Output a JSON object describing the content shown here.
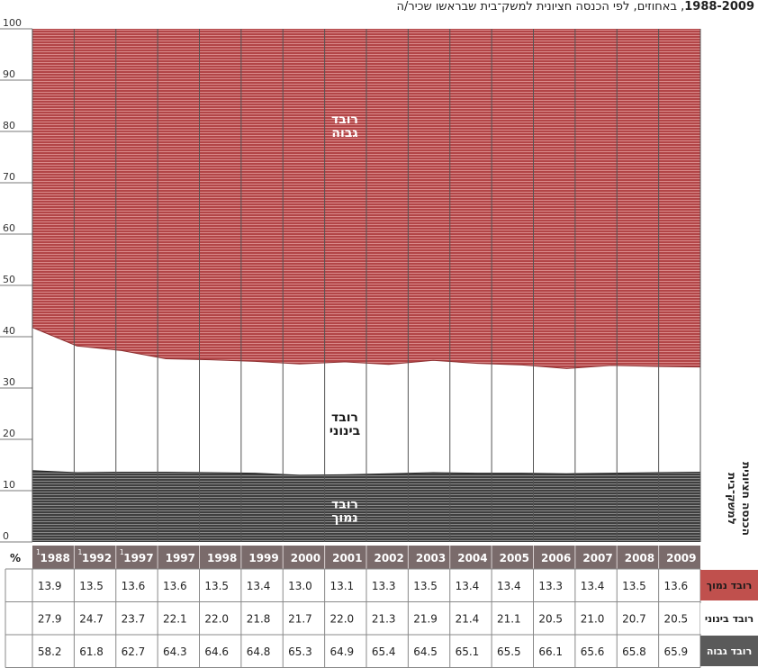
{
  "title": {
    "years": "1988-2009",
    "text": "באחוזים, לפי הכנסה חציונית למשק־בית שבראשו שכיר/ה"
  },
  "row_header_title": "הכנסה חציונית למשק־בית",
  "percent_symbol": "%",
  "footnote_mark": "1",
  "colors": {
    "high": "#b24547",
    "middle": "#ffffff",
    "low": "#3f3f3f",
    "header_band": "#7a6b6b",
    "label_low": "#c0504d",
    "label_high": "#5a5a5a"
  },
  "chart_data": {
    "type": "area",
    "stacked": true,
    "x": [
      "1988",
      "1992",
      "1997",
      "1997",
      "1998",
      "1999",
      "2000",
      "2001",
      "2002",
      "2003",
      "2004",
      "2005",
      "2006",
      "2007",
      "2008",
      "2009"
    ],
    "footnoted": [
      true,
      true,
      true,
      false,
      false,
      false,
      false,
      false,
      false,
      false,
      false,
      false,
      false,
      false,
      false,
      false
    ],
    "y_ticks": [
      "0",
      "10",
      "20",
      "30",
      "40",
      "50",
      "60",
      "70",
      "80",
      "90",
      "100"
    ],
    "ylim": [
      0,
      100
    ],
    "series": [
      {
        "key": "low",
        "name": "רובד נמוך",
        "label": [
          "רובד",
          "נמוך"
        ],
        "values": [
          13.9,
          13.5,
          13.6,
          13.6,
          13.5,
          13.4,
          13.0,
          13.1,
          13.3,
          13.5,
          13.4,
          13.4,
          13.3,
          13.4,
          13.5,
          13.6
        ]
      },
      {
        "key": "middle",
        "name": "רובד בינוני",
        "label": [
          "רובד",
          "בינוני"
        ],
        "values": [
          27.9,
          24.7,
          23.7,
          22.1,
          22.0,
          21.8,
          21.7,
          22.0,
          21.3,
          21.9,
          21.4,
          21.1,
          20.5,
          21.0,
          20.7,
          20.5
        ]
      },
      {
        "key": "high",
        "name": "רובד גבוה",
        "label": [
          "רובד",
          "גבוה"
        ],
        "values": [
          58.2,
          61.8,
          62.7,
          64.3,
          64.6,
          64.8,
          65.3,
          64.9,
          65.4,
          64.5,
          65.1,
          65.5,
          66.1,
          65.6,
          65.8,
          65.9
        ]
      }
    ]
  }
}
